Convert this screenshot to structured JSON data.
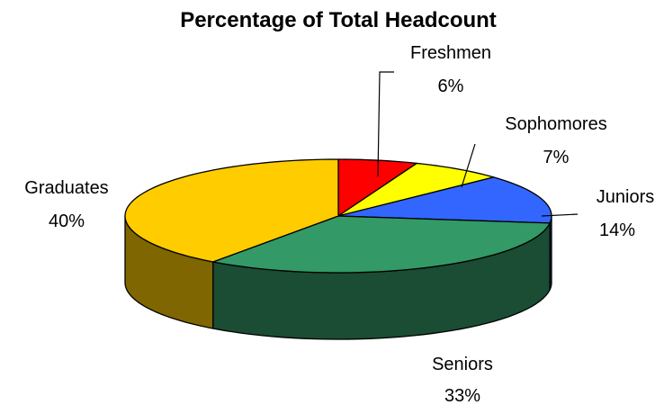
{
  "chart_data": {
    "type": "pie",
    "title": "Percentage of Total Headcount",
    "slices": [
      {
        "label": "Freshmen",
        "value": 6,
        "value_label": "6%",
        "color": "#ff0000"
      },
      {
        "label": "Sophomores",
        "value": 7,
        "value_label": "7%",
        "color": "#ffff00"
      },
      {
        "label": "Juniors",
        "value": 14,
        "value_label": "14%",
        "color": "#3366ff"
      },
      {
        "label": "Seniors",
        "value": 33,
        "value_label": "33%",
        "color": "#339966"
      },
      {
        "label": "Graduates",
        "value": 40,
        "value_label": "40%",
        "color": "#ffcc00"
      }
    ],
    "three_d": true,
    "legend": "none",
    "data_labels": "outside with leader lines"
  }
}
